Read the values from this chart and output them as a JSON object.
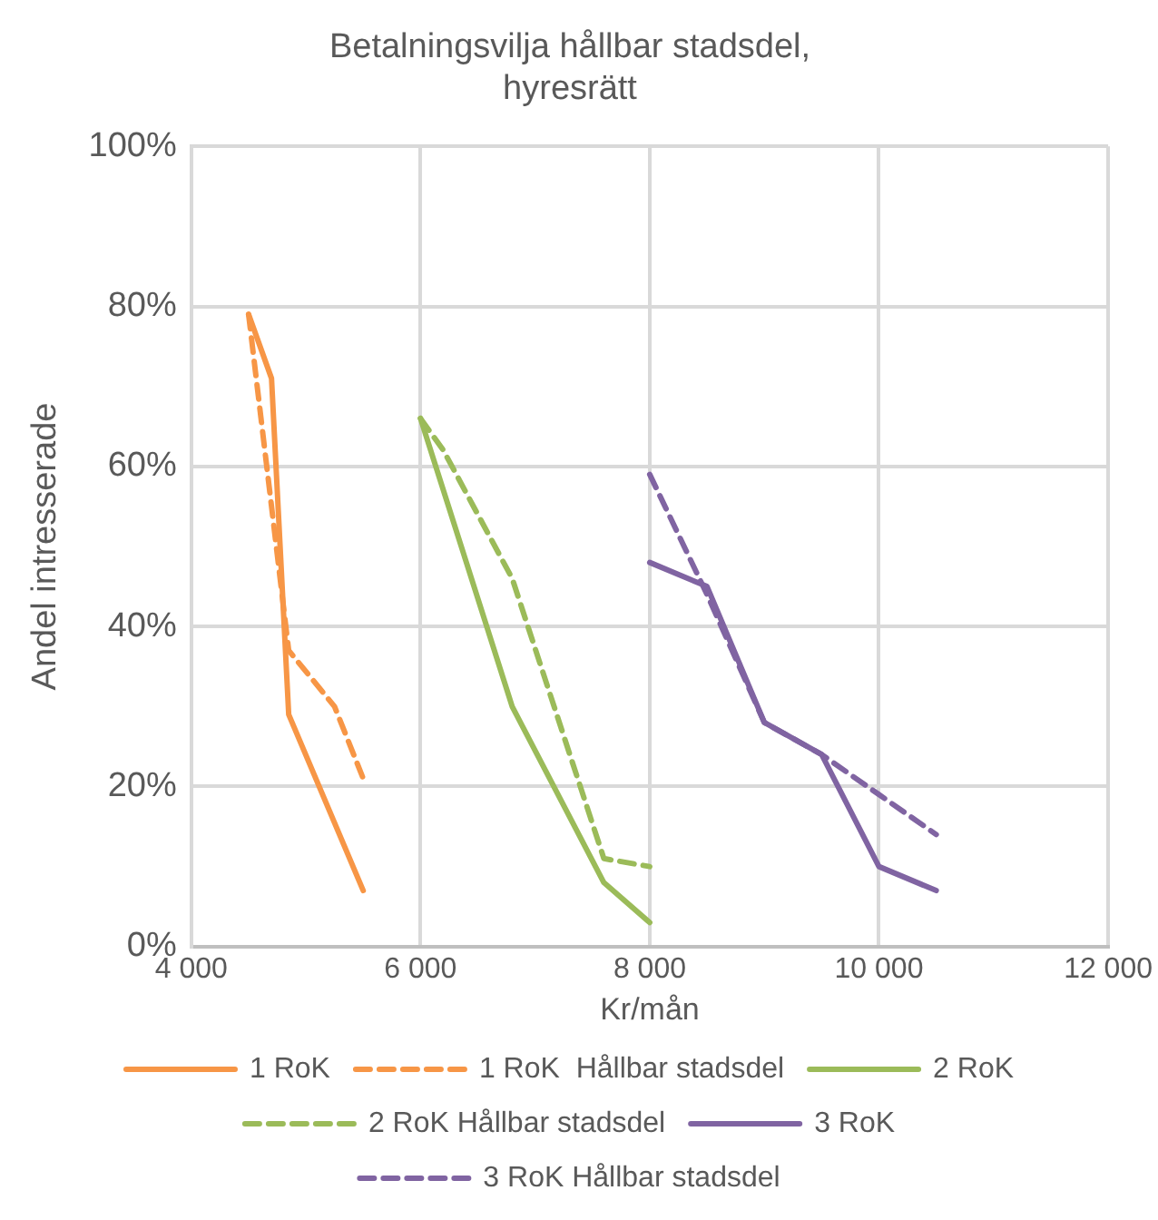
{
  "chart_data": {
    "type": "line",
    "title": "Betalningsvilja hållbar stadsdel, hyresrätt",
    "xlabel": "Kr/mån",
    "ylabel": "Andel intresserade",
    "xlim": [
      4000,
      12000
    ],
    "xticks": [
      {
        "value": 4000,
        "label": "4 000"
      },
      {
        "value": 6000,
        "label": "6 000"
      },
      {
        "value": 8000,
        "label": "8 000"
      },
      {
        "value": 10000,
        "label": "10 000"
      },
      {
        "value": 12000,
        "label": "12 000"
      }
    ],
    "ylim": [
      0,
      100
    ],
    "yticks": [
      {
        "value": 0,
        "label": "0%"
      },
      {
        "value": 20,
        "label": "20%"
      },
      {
        "value": 40,
        "label": "40%"
      },
      {
        "value": 60,
        "label": "60%"
      },
      {
        "value": 80,
        "label": "80%"
      },
      {
        "value": 100,
        "label": "100%"
      }
    ],
    "grid": true,
    "legend": "bottom",
    "marker": "none",
    "series": [
      {
        "name": "1 RoK",
        "color": "#f79646",
        "line_style": "solid",
        "x": [
          4500,
          4700,
          4850,
          5500
        ],
        "values": [
          79,
          71,
          29,
          7
        ]
      },
      {
        "name": "1 RoK  Hållbar stadsdel",
        "color": "#f79646",
        "line_style": "dashed",
        "x": [
          4500,
          4850,
          5250,
          5500
        ],
        "values": [
          79,
          37,
          30,
          21
        ]
      },
      {
        "name": "2 RoK",
        "color": "#9bbb59",
        "line_style": "solid",
        "x": [
          6000,
          6800,
          7200,
          7600,
          8000
        ],
        "values": [
          66,
          30,
          19,
          8,
          3
        ]
      },
      {
        "name": "2 RoK Hållbar stadsdel",
        "color": "#9bbb59",
        "line_style": "dashed",
        "x": [
          6000,
          6200,
          6800,
          7600,
          8000
        ],
        "values": [
          66,
          62,
          46,
          11,
          10
        ]
      },
      {
        "name": "3 RoK",
        "color": "#8064a2",
        "line_style": "solid",
        "x": [
          8000,
          8500,
          9000,
          9500,
          10000,
          10500
        ],
        "values": [
          48,
          45,
          28,
          24,
          10,
          7
        ]
      },
      {
        "name": "3 RoK Hållbar stadsdel",
        "color": "#8064a2",
        "line_style": "dashed",
        "x": [
          8000,
          8500,
          9000,
          9500,
          10000,
          10500
        ],
        "values": [
          59,
          44,
          28,
          24,
          19,
          14
        ]
      }
    ]
  }
}
